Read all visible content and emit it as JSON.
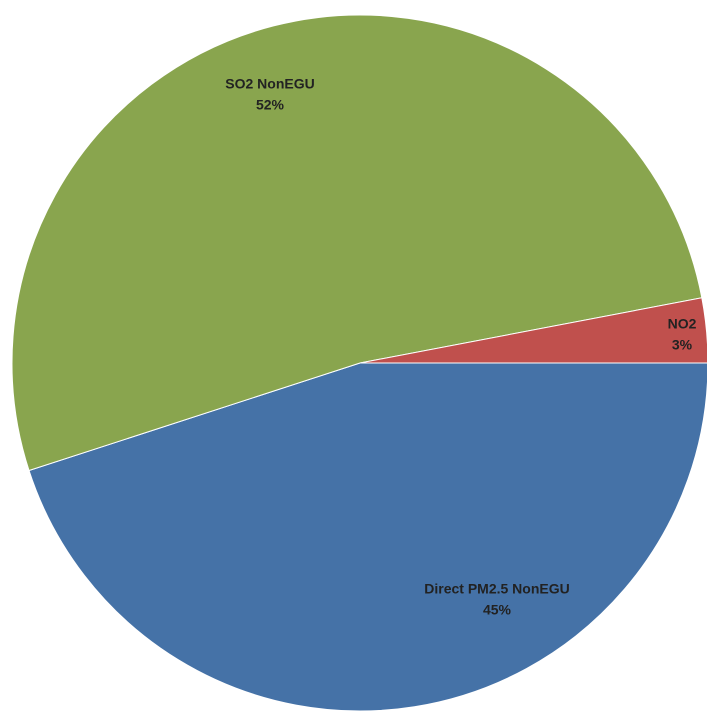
{
  "chart_data": {
    "type": "pie",
    "categories": [
      "Direct PM2.5 NonEGU",
      "SO2 NonEGU",
      "NO2"
    ],
    "values": [
      45,
      52,
      3
    ],
    "value_labels": [
      "45%",
      "52%",
      "3%"
    ],
    "colors": [
      "#4572a7",
      "#89a54e",
      "#c0504d"
    ]
  }
}
